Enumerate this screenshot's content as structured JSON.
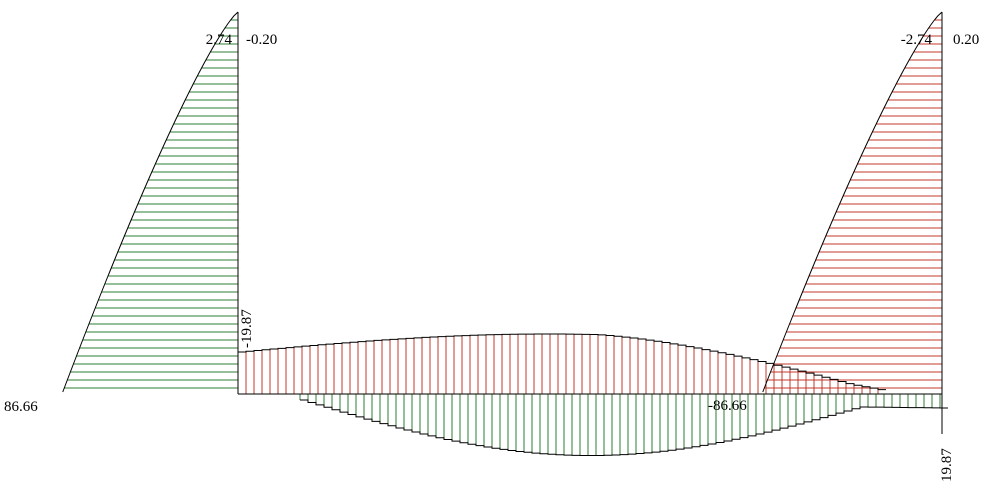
{
  "labels": {
    "left_top": "2.74",
    "left_top_right": "-0.20",
    "left_bottom": "86.66",
    "left_beam_end": "-19.87",
    "right_top": "-2.74",
    "right_top_right": "0.20",
    "right_mid": "-86.66",
    "right_beam_end": "19.87"
  },
  "colors": {
    "positive": "#2e7d32",
    "negative": "#c0392b",
    "outline": "#000000"
  }
}
